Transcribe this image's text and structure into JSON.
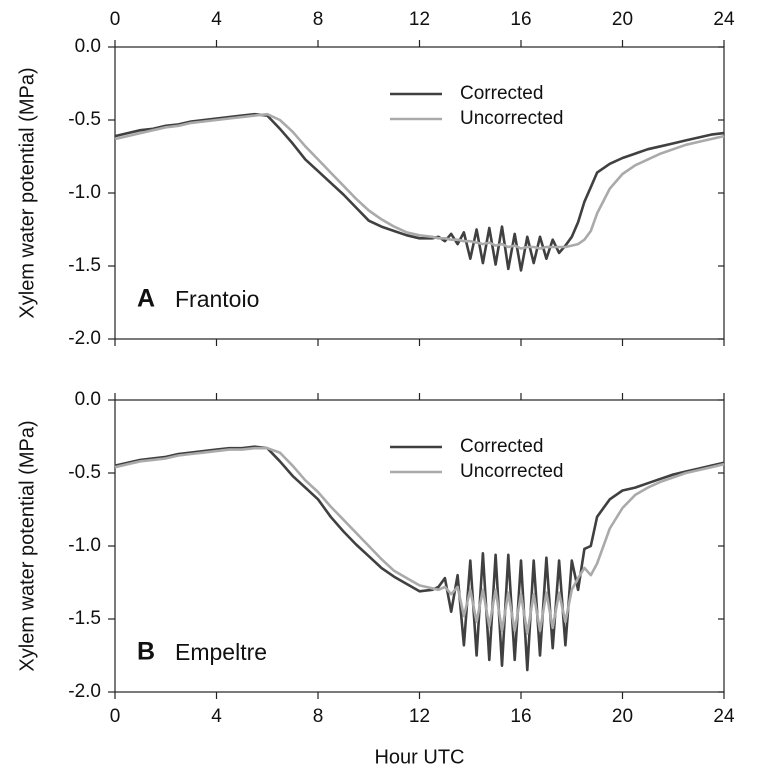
{
  "chart_data": [
    {
      "type": "line",
      "panel_label": "A",
      "panel_name": "Frantoio",
      "ylabel": "Xylem water potential (MPa)",
      "xlim": [
        0,
        24
      ],
      "xticks": [
        0,
        4,
        8,
        12,
        16,
        20,
        24
      ],
      "xtick_labels_side": "top",
      "ylim": [
        -2,
        0
      ],
      "yticks": [
        {
          "value": 0,
          "label": "0.0"
        },
        -0.5,
        {
          "value": -1,
          "label": "-1.0"
        },
        -1.5,
        {
          "value": -2,
          "label": "-2.0"
        }
      ],
      "legend": "upper center",
      "x": [
        0,
        0.5,
        1,
        1.5,
        2,
        2.5,
        3,
        3.5,
        4,
        4.5,
        5,
        5.5,
        6,
        6.5,
        7,
        7.5,
        8,
        8.5,
        9,
        9.5,
        10,
        10.5,
        11,
        11.5,
        12,
        12.5,
        12.75,
        13,
        13.25,
        13.5,
        13.75,
        14,
        14.25,
        14.5,
        14.75,
        15,
        15.25,
        15.5,
        15.75,
        16,
        16.25,
        16.5,
        16.75,
        17,
        17.25,
        17.5,
        17.75,
        18,
        18.25,
        18.5,
        18.75,
        19,
        19.5,
        20,
        20.5,
        21,
        21.5,
        22,
        22.5,
        23,
        23.5,
        24
      ],
      "series": [
        {
          "name": "Corrected",
          "color": "#404040",
          "values": [
            -0.61,
            -0.59,
            -0.57,
            -0.56,
            -0.54,
            -0.53,
            -0.51,
            -0.5,
            -0.49,
            -0.48,
            -0.47,
            -0.46,
            -0.47,
            -0.56,
            -0.66,
            -0.77,
            -0.85,
            -0.93,
            -1.01,
            -1.1,
            -1.19,
            -1.23,
            -1.26,
            -1.29,
            -1.31,
            -1.31,
            -1.3,
            -1.33,
            -1.28,
            -1.35,
            -1.27,
            -1.45,
            -1.25,
            -1.48,
            -1.24,
            -1.49,
            -1.23,
            -1.52,
            -1.28,
            -1.53,
            -1.3,
            -1.48,
            -1.3,
            -1.45,
            -1.32,
            -1.41,
            -1.36,
            -1.3,
            -1.2,
            -1.06,
            -0.96,
            -0.86,
            -0.8,
            -0.76,
            -0.73,
            -0.7,
            -0.68,
            -0.66,
            -0.64,
            -0.62,
            -0.6,
            -0.59
          ]
        },
        {
          "name": "Uncorrected",
          "color": "#aaaaaa",
          "values": [
            -0.63,
            -0.61,
            -0.59,
            -0.57,
            -0.55,
            -0.54,
            -0.52,
            -0.51,
            -0.5,
            -0.49,
            -0.48,
            -0.47,
            -0.46,
            -0.5,
            -0.58,
            -0.68,
            -0.77,
            -0.86,
            -0.95,
            -1.04,
            -1.12,
            -1.18,
            -1.23,
            -1.27,
            -1.29,
            -1.3,
            -1.31,
            -1.31,
            -1.32,
            -1.32,
            -1.33,
            -1.33,
            -1.34,
            -1.35,
            -1.34,
            -1.36,
            -1.35,
            -1.37,
            -1.36,
            -1.38,
            -1.37,
            -1.37,
            -1.38,
            -1.37,
            -1.37,
            -1.37,
            -1.37,
            -1.36,
            -1.35,
            -1.32,
            -1.26,
            -1.14,
            -0.97,
            -0.87,
            -0.81,
            -0.77,
            -0.73,
            -0.7,
            -0.67,
            -0.65,
            -0.63,
            -0.61
          ]
        }
      ]
    },
    {
      "type": "line",
      "panel_label": "B",
      "panel_name": "Empeltre",
      "ylabel": "Xylem water potential (MPa)",
      "xlabel": "Hour UTC",
      "xlim": [
        0,
        24
      ],
      "xticks": [
        0,
        4,
        8,
        12,
        16,
        20,
        24
      ],
      "xtick_labels_side": "bottom",
      "ylim": [
        -2,
        0
      ],
      "yticks": [
        {
          "value": 0,
          "label": "0.0"
        },
        -0.5,
        {
          "value": -1,
          "label": "-1.0"
        },
        -1.5,
        {
          "value": -2,
          "label": "-2.0"
        }
      ],
      "legend": "upper center",
      "x": [
        0,
        0.5,
        1,
        1.5,
        2,
        2.5,
        3,
        3.5,
        4,
        4.5,
        5,
        5.5,
        6,
        6.5,
        7,
        7.5,
        8,
        8.5,
        9,
        9.5,
        10,
        10.5,
        11,
        11.5,
        12,
        12.5,
        12.75,
        13,
        13.25,
        13.5,
        13.75,
        14,
        14.25,
        14.5,
        14.75,
        15,
        15.25,
        15.5,
        15.75,
        16,
        16.25,
        16.5,
        16.75,
        17,
        17.25,
        17.5,
        17.75,
        18,
        18.25,
        18.5,
        18.75,
        19,
        19.5,
        20,
        20.5,
        21,
        21.5,
        22,
        22.5,
        23,
        23.5,
        24
      ],
      "series": [
        {
          "name": "Corrected",
          "color": "#404040",
          "values": [
            -0.45,
            -0.43,
            -0.41,
            -0.4,
            -0.39,
            -0.37,
            -0.36,
            -0.35,
            -0.34,
            -0.33,
            -0.33,
            -0.32,
            -0.33,
            -0.42,
            -0.52,
            -0.6,
            -0.68,
            -0.8,
            -0.9,
            -0.99,
            -1.07,
            -1.15,
            -1.21,
            -1.26,
            -1.31,
            -1.3,
            -1.28,
            -1.22,
            -1.45,
            -1.2,
            -1.68,
            -1.1,
            -1.75,
            -1.05,
            -1.78,
            -1.06,
            -1.82,
            -1.06,
            -1.78,
            -1.1,
            -1.85,
            -1.1,
            -1.75,
            -1.08,
            -1.7,
            -1.1,
            -1.68,
            -1.1,
            -1.3,
            -1.02,
            -1.0,
            -0.8,
            -0.68,
            -0.62,
            -0.6,
            -0.57,
            -0.54,
            -0.51,
            -0.49,
            -0.47,
            -0.45,
            -0.43
          ]
        },
        {
          "name": "Uncorrected",
          "color": "#aaaaaa",
          "values": [
            -0.46,
            -0.44,
            -0.42,
            -0.41,
            -0.4,
            -0.38,
            -0.37,
            -0.36,
            -0.35,
            -0.34,
            -0.34,
            -0.33,
            -0.33,
            -0.36,
            -0.45,
            -0.55,
            -0.63,
            -0.73,
            -0.82,
            -0.91,
            -1.0,
            -1.09,
            -1.17,
            -1.22,
            -1.27,
            -1.29,
            -1.3,
            -1.28,
            -1.33,
            -1.28,
            -1.48,
            -1.3,
            -1.52,
            -1.3,
            -1.55,
            -1.3,
            -1.58,
            -1.32,
            -1.58,
            -1.33,
            -1.6,
            -1.33,
            -1.58,
            -1.32,
            -1.56,
            -1.32,
            -1.52,
            -1.3,
            -1.22,
            -1.15,
            -1.2,
            -1.12,
            -0.88,
            -0.74,
            -0.65,
            -0.6,
            -0.56,
            -0.53,
            -0.5,
            -0.48,
            -0.46,
            -0.44
          ]
        }
      ]
    }
  ]
}
